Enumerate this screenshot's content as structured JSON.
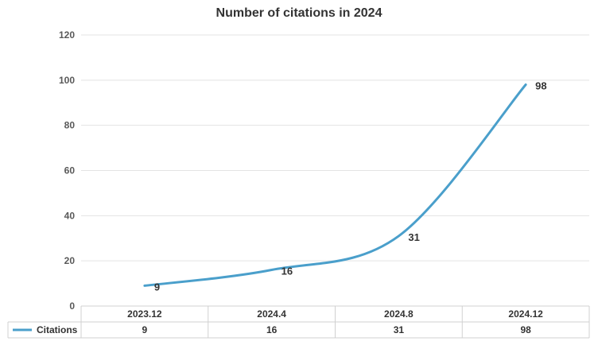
{
  "chart_data": {
    "type": "line",
    "title": "Number of citations in 2024",
    "categories": [
      "2023.12",
      "2024.4",
      "2024.8",
      "2024.12"
    ],
    "series": [
      {
        "name": "Citations",
        "values": [
          9,
          16,
          31,
          98
        ],
        "color": "#4a9fcb"
      }
    ],
    "ylim": [
      0,
      120
    ],
    "yticks": [
      0,
      20,
      40,
      60,
      80,
      100,
      120
    ],
    "grid": true,
    "smooth": true,
    "data_labels": true,
    "legend": "data-table"
  }
}
